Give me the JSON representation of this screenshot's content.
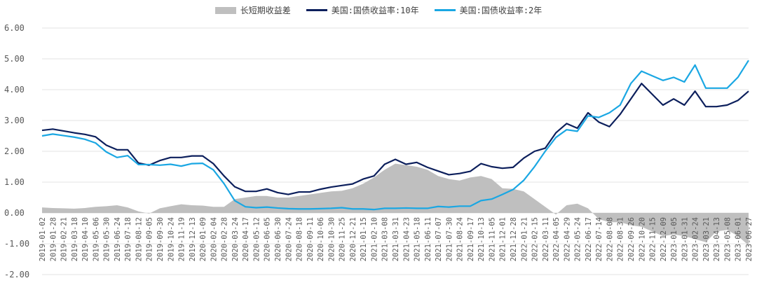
{
  "chart_data": {
    "type": "area",
    "title": "",
    "xlabel": "",
    "ylabel": "",
    "ylim": [
      -2,
      6
    ],
    "yticks": [
      6,
      5,
      4,
      3,
      2,
      1,
      0,
      -1,
      -2
    ],
    "ytick_labels": [
      "6.00",
      "5.00",
      "4.00",
      "3.00",
      "2.00",
      "1.00",
      "0.00",
      "-1.00",
      "-2.00"
    ],
    "grid": "horizontal",
    "legend_position": "top-center",
    "colors": {
      "spread": "#bfbfbf",
      "ten_year": "#0c1f5c",
      "two_year": "#1aa7e3",
      "grid": "#e3e3e3"
    },
    "x": [
      "2019-01-02",
      "2019-01-28",
      "2019-02-21",
      "2019-03-18",
      "2019-04-10",
      "2019-05-06",
      "2019-05-30",
      "2019-06-24",
      "2019-07-18",
      "2019-08-12",
      "2019-09-05",
      "2019-09-30",
      "2019-10-24",
      "2019-11-19",
      "2019-12-13",
      "2020-01-09",
      "2020-02-04",
      "2020-02-28",
      "2020-03-24",
      "2020-04-17",
      "2020-05-12",
      "2020-06-05",
      "2020-06-30",
      "2020-07-24",
      "2020-08-18",
      "2020-09-11",
      "2020-10-06",
      "2020-10-30",
      "2020-11-25",
      "2020-12-21",
      "2021-01-15",
      "2021-02-10",
      "2021-03-08",
      "2021-03-31",
      "2021-04-23",
      "2021-05-18",
      "2021-06-11",
      "2021-07-07",
      "2021-07-30",
      "2021-08-24",
      "2021-09-17",
      "2021-10-13",
      "2021-11-05",
      "2021-12-01",
      "2021-12-28",
      "2022-01-21",
      "2022-02-15",
      "2022-03-11",
      "2022-04-05",
      "2022-04-29",
      "2022-05-24",
      "2022-06-17",
      "2022-07-14",
      "2022-08-08",
      "2022-08-31",
      "2022-09-26",
      "2022-10-20",
      "2022-11-15",
      "2022-12-09",
      "2023-01-05",
      "2023-01-31",
      "2023-02-24",
      "2023-03-21",
      "2023-04-13",
      "2023-05-08",
      "2023-06-01",
      "2023-06-27"
    ],
    "series": [
      {
        "name": "长短期收益差",
        "kind": "area",
        "values": [
          0.18,
          0.16,
          0.15,
          0.14,
          0.16,
          0.2,
          0.22,
          0.25,
          0.18,
          0.05,
          -0.02,
          0.15,
          0.22,
          0.28,
          0.25,
          0.24,
          0.2,
          0.2,
          0.45,
          0.5,
          0.55,
          0.55,
          0.5,
          0.5,
          0.55,
          0.6,
          0.65,
          0.7,
          0.72,
          0.8,
          0.95,
          1.15,
          1.4,
          1.6,
          1.55,
          1.5,
          1.4,
          1.2,
          1.1,
          1.05,
          1.15,
          1.2,
          1.1,
          0.8,
          0.78,
          0.7,
          0.45,
          0.2,
          -0.05,
          0.25,
          0.3,
          0.15,
          -0.2,
          -0.3,
          -0.3,
          -0.4,
          -0.45,
          -0.6,
          -0.75,
          -0.7,
          -0.75,
          -0.85,
          -0.95,
          -0.6,
          -0.55,
          -0.75,
          -1.05
        ]
      },
      {
        "name": "美国:国债收益率:10年",
        "kind": "line",
        "values": [
          2.68,
          2.72,
          2.66,
          2.6,
          2.55,
          2.47,
          2.2,
          2.05,
          2.05,
          1.62,
          1.55,
          1.7,
          1.8,
          1.8,
          1.85,
          1.85,
          1.6,
          1.2,
          0.85,
          0.7,
          0.7,
          0.78,
          0.66,
          0.6,
          0.68,
          0.68,
          0.77,
          0.84,
          0.89,
          0.94,
          1.1,
          1.2,
          1.58,
          1.74,
          1.58,
          1.64,
          1.48,
          1.36,
          1.24,
          1.28,
          1.35,
          1.6,
          1.5,
          1.45,
          1.48,
          1.78,
          2.0,
          2.1,
          2.6,
          2.9,
          2.75,
          3.25,
          2.95,
          2.8,
          3.2,
          3.7,
          4.2,
          3.85,
          3.5,
          3.7,
          3.5,
          3.95,
          3.45,
          3.45,
          3.5,
          3.65,
          3.95
        ]
      },
      {
        "name": "美国:国债收益率:2年",
        "kind": "line",
        "values": [
          2.5,
          2.56,
          2.51,
          2.46,
          2.39,
          2.27,
          1.98,
          1.8,
          1.86,
          1.57,
          1.57,
          1.55,
          1.58,
          1.52,
          1.6,
          1.61,
          1.4,
          0.95,
          0.4,
          0.2,
          0.17,
          0.19,
          0.16,
          0.14,
          0.13,
          0.13,
          0.14,
          0.15,
          0.17,
          0.13,
          0.13,
          0.11,
          0.15,
          0.15,
          0.16,
          0.15,
          0.15,
          0.21,
          0.19,
          0.22,
          0.22,
          0.4,
          0.45,
          0.6,
          0.76,
          1.06,
          1.5,
          2.0,
          2.45,
          2.7,
          2.65,
          3.15,
          3.1,
          3.25,
          3.5,
          4.2,
          4.6,
          4.45,
          4.3,
          4.4,
          4.25,
          4.8,
          4.05,
          4.05,
          4.05,
          4.4,
          4.95
        ]
      }
    ]
  }
}
